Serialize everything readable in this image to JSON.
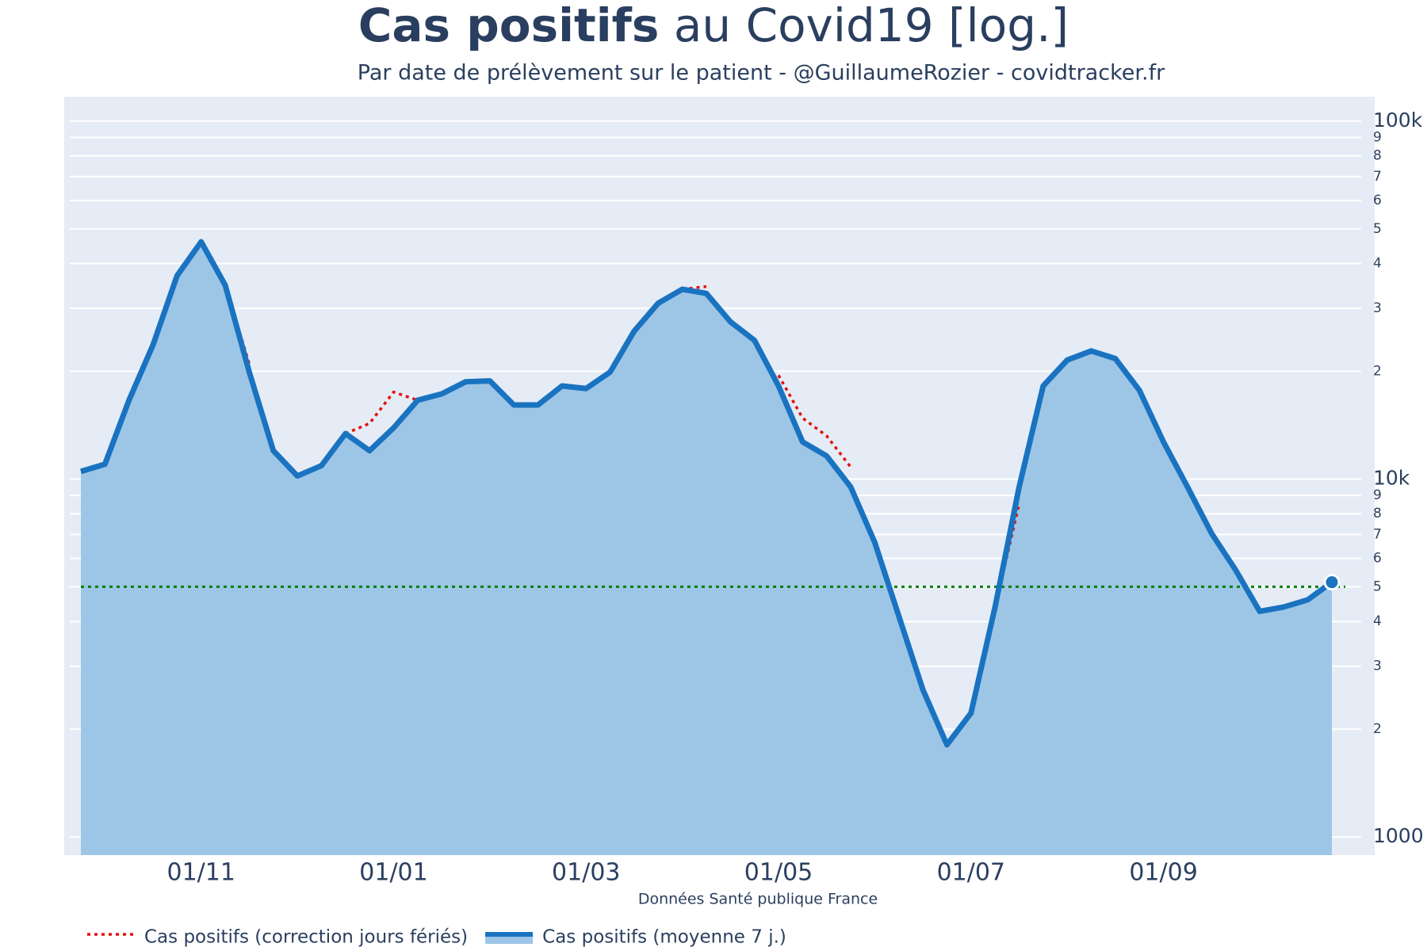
{
  "chart_data": {
    "type": "line",
    "title": {
      "bold": "Cas positifs",
      "text": "au Covid19 [log.]"
    },
    "subtitle": "Par date de prélèvement sur le patient - @GuillaumeRozier - covidtracker.fr",
    "x_label": "Données Santé publique France",
    "x": [
      "22/09",
      "01/10",
      "08/10",
      "15/10",
      "22/10",
      "01/11",
      "08/11",
      "15/11",
      "22/11",
      "01/12",
      "08/12",
      "15/12",
      "22/12",
      "01/01",
      "08/01",
      "15/01",
      "22/01",
      "01/02",
      "08/02",
      "15/02",
      "22/02",
      "01/03",
      "08/03",
      "15/03",
      "22/03",
      "01/04",
      "08/04",
      "15/04",
      "22/04",
      "01/05",
      "08/05",
      "15/05",
      "22/05",
      "01/06",
      "08/06",
      "15/06",
      "22/06",
      "01/07",
      "08/07",
      "15/07",
      "22/07",
      "01/08",
      "08/08",
      "15/08",
      "22/08",
      "01/09",
      "08/09",
      "15/09",
      "22/09",
      "01/10",
      "08/10",
      "15/10",
      "20/10"
    ],
    "xticks": [
      "01/11",
      "01/01",
      "01/03",
      "01/05",
      "01/07",
      "01/09"
    ],
    "series": [
      {
        "name": "Cas positifs (correction jours fériés)",
        "color": "#e3120b",
        "dash": true,
        "values": [
          null,
          null,
          null,
          null,
          null,
          null,
          34800,
          21000,
          null,
          null,
          null,
          13400,
          14300,
          17500,
          16600,
          null,
          null,
          null,
          null,
          null,
          null,
          null,
          null,
          null,
          null,
          33900,
          34500,
          null,
          null,
          19500,
          14800,
          13200,
          10800,
          null,
          null,
          null,
          null,
          null,
          4390,
          8500,
          null,
          null,
          null,
          null,
          null,
          null,
          null,
          null,
          null,
          null,
          null,
          null,
          null
        ]
      },
      {
        "name": "Cas positifs (moyenne 7 j.)",
        "color": "#1a73c0",
        "area_color": "#9dc6e6",
        "area": true,
        "values": [
          10500,
          11000,
          16600,
          23700,
          37000,
          46000,
          34800,
          19900,
          12000,
          10200,
          10900,
          13400,
          12000,
          13900,
          16600,
          17300,
          18700,
          18800,
          16100,
          16100,
          18200,
          17900,
          19900,
          25900,
          31000,
          33900,
          33000,
          27500,
          24400,
          18200,
          12700,
          11600,
          9500,
          6650,
          4140,
          2580,
          1810,
          2220,
          4390,
          9500,
          18200,
          21500,
          22800,
          21700,
          17700,
          12700,
          9500,
          7050,
          5570,
          4270,
          4390,
          4600,
          5150
        ]
      }
    ],
    "reference_line": {
      "value": 5000,
      "color": "#008000"
    },
    "log_y": true,
    "ylim": [
      890,
      117000
    ],
    "yticks": [
      1000,
      {
        "value": 2000,
        "label": "2"
      },
      {
        "value": 3000,
        "label": "3"
      },
      {
        "value": 4000,
        "label": "4"
      },
      {
        "value": 5000,
        "label": "5"
      },
      {
        "value": 6000,
        "label": "6"
      },
      {
        "value": 7000,
        "label": "7"
      },
      {
        "value": 8000,
        "label": "8"
      },
      {
        "value": 9000,
        "label": "9"
      },
      {
        "value": 10000,
        "label": "10k"
      },
      {
        "value": 20000,
        "label": "2"
      },
      {
        "value": 30000,
        "label": "3"
      },
      {
        "value": 40000,
        "label": "4"
      },
      {
        "value": 50000,
        "label": "5"
      },
      {
        "value": 60000,
        "label": "6"
      },
      {
        "value": 70000,
        "label": "7"
      },
      {
        "value": 80000,
        "label": "8"
      },
      {
        "value": 90000,
        "label": "9"
      },
      {
        "value": 100000,
        "label": "100k"
      }
    ],
    "grid": true,
    "legend": "bottom-left"
  }
}
